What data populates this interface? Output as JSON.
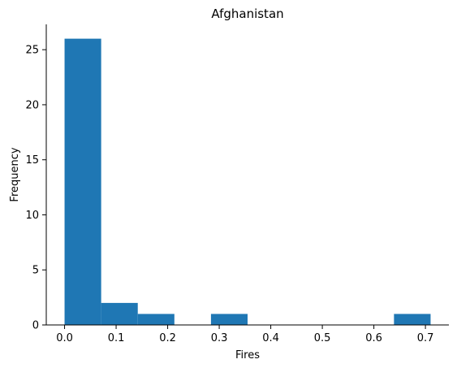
{
  "chart_data": {
    "type": "bar",
    "subtype": "histogram",
    "title": "Afghanistan",
    "xlabel": "Fires",
    "ylabel": "Frequency",
    "bins": [
      {
        "x0": 0.0,
        "x1": 0.071,
        "value": 26
      },
      {
        "x0": 0.071,
        "x1": 0.142,
        "value": 2
      },
      {
        "x0": 0.142,
        "x1": 0.213,
        "value": 1
      },
      {
        "x0": 0.213,
        "x1": 0.284,
        "value": 0
      },
      {
        "x0": 0.284,
        "x1": 0.355,
        "value": 1
      },
      {
        "x0": 0.355,
        "x1": 0.426,
        "value": 0
      },
      {
        "x0": 0.426,
        "x1": 0.497,
        "value": 0
      },
      {
        "x0": 0.497,
        "x1": 0.568,
        "value": 0
      },
      {
        "x0": 0.568,
        "x1": 0.639,
        "value": 0
      },
      {
        "x0": 0.639,
        "x1": 0.71,
        "value": 1
      }
    ],
    "xticks": [
      {
        "value": 0.0,
        "label": "0.0"
      },
      {
        "value": 0.1,
        "label": "0.1"
      },
      {
        "value": 0.2,
        "label": "0.2"
      },
      {
        "value": 0.3,
        "label": "0.3"
      },
      {
        "value": 0.4,
        "label": "0.4"
      },
      {
        "value": 0.5,
        "label": "0.5"
      },
      {
        "value": 0.6,
        "label": "0.6"
      },
      {
        "value": 0.7,
        "label": "0.7"
      }
    ],
    "yticks": [
      {
        "value": 0,
        "label": "0"
      },
      {
        "value": 5,
        "label": "5"
      },
      {
        "value": 10,
        "label": "10"
      },
      {
        "value": 15,
        "label": "15"
      },
      {
        "value": 20,
        "label": "20"
      },
      {
        "value": 25,
        "label": "25"
      }
    ],
    "xlim": [
      -0.0355,
      0.7455
    ],
    "ylim": [
      0,
      27.3
    ],
    "grid": false,
    "bar_color": "#1f77b4",
    "axis_color": "#000000"
  }
}
